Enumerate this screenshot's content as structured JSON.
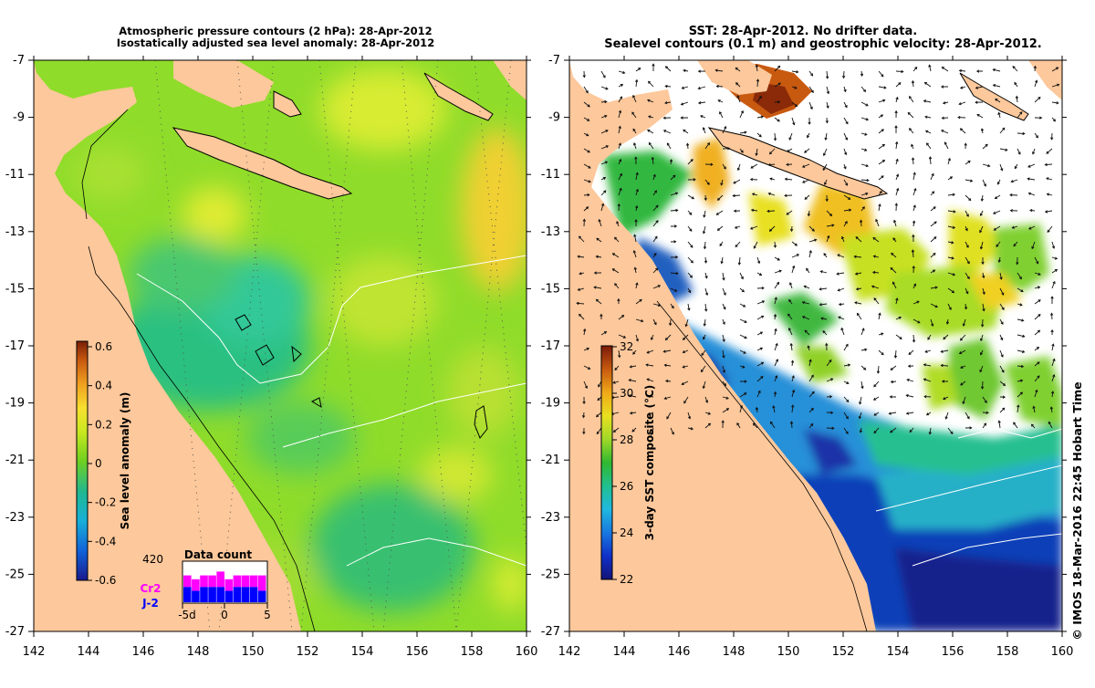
{
  "left_panel": {
    "title_line1": "Atmospheric pressure contours (2 hPa): 28-Apr-2012",
    "title_line2": "Isostatically adjusted sea level anomaly: 28-Apr-2012",
    "colorbar": {
      "label": "Sea level anomaly (m)",
      "ticks": [
        "0.6",
        "0.4",
        "0.2",
        "0",
        "-0.2",
        "-0.4",
        "-0.6"
      ],
      "min": -0.6,
      "max": 0.6
    },
    "data_count": {
      "title": "Data count",
      "max_label": "420",
      "series1_label": "Cr2",
      "series2_label": "J-2",
      "series1_color": "#ff00ff",
      "series2_color": "#0000ff",
      "x_ticks": [
        "-5d",
        "0",
        "5"
      ],
      "cr2": [
        3,
        3,
        3,
        3,
        4,
        3,
        3,
        3,
        3,
        4
      ],
      "j2": [
        4,
        3,
        4,
        4,
        4,
        3,
        4,
        4,
        4,
        3
      ]
    }
  },
  "right_panel": {
    "title_line1": "SST: 28-Apr-2012. No drifter data.",
    "title_line2": "Sealevel contours (0.1 m) and geostrophic velocity: 28-Apr-2012.",
    "colorbar": {
      "label": "3-day SST composite (°C)",
      "ticks": [
        "32",
        "30",
        "28",
        "26",
        "24",
        "22"
      ],
      "min": 22,
      "max": 32
    }
  },
  "axes": {
    "x_ticks": [
      "142",
      "144",
      "146",
      "148",
      "150",
      "152",
      "154",
      "156",
      "158",
      "160"
    ],
    "y_ticks": [
      "-7",
      "-9",
      "-11",
      "-13",
      "-15",
      "-17",
      "-19",
      "-21",
      "-23",
      "-25",
      "-27"
    ],
    "lon_range": [
      142,
      160
    ],
    "lat_range": [
      -27,
      -7
    ]
  },
  "credit": "© IMOS 18-Mar-2016 22:45 Hobart Time",
  "colors": {
    "land": "#fdc89b",
    "ocean_base": "#8fdc2a",
    "cloud": "#ffffff"
  }
}
